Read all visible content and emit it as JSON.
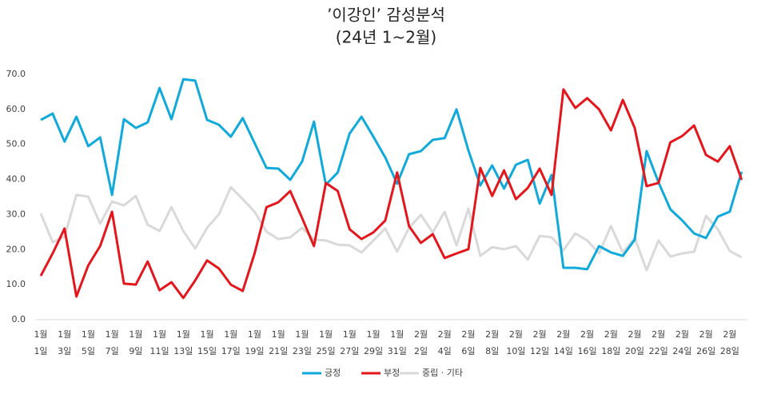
{
  "chart_data": {
    "type": "line",
    "title": "’이강인’ 감성분석",
    "subtitle": "(24년 1~2월)",
    "categories": [
      "1월\n1일",
      null,
      "1월\n3일",
      null,
      "1월\n5일",
      null,
      "1월\n7일",
      null,
      "1월\n9일",
      null,
      "1월\n11일",
      null,
      "1월\n13일",
      null,
      "1월\n15일",
      null,
      "1월\n17일",
      null,
      "1월\n19일",
      null,
      "1월\n21일",
      null,
      "1월\n23일",
      null,
      "1월\n25일",
      null,
      "1월\n27일",
      null,
      "1월\n29일",
      null,
      "1월\n31일",
      null,
      "2월\n2일",
      null,
      "2월\n4일",
      null,
      "2월\n6일",
      null,
      "2월\n8일",
      null,
      "2월\n10일",
      null,
      "2월\n12일",
      null,
      "2월\n14일",
      null,
      "2월\n16일",
      null,
      "2월\n18일",
      null,
      "2월\n20일",
      null,
      "2월\n22일",
      null,
      "2월\n24일",
      null,
      "2월\n26일",
      null,
      "2월\n28일",
      null
    ],
    "series": [
      {
        "name": "긍정",
        "color": "#10a9dc",
        "values": [
          57.0,
          58.8,
          50.8,
          57.9,
          49.5,
          52.0,
          35.6,
          57.2,
          54.7,
          56.3,
          66.1,
          57.2,
          68.6,
          68.2,
          57.0,
          55.6,
          52.2,
          57.5,
          50.4,
          43.3,
          43.1,
          39.9,
          45.1,
          56.5,
          38.5,
          42.0,
          53.1,
          57.9,
          52.2,
          46.3,
          38.8,
          47.2,
          48.1,
          51.3,
          51.8,
          60.0,
          48.3,
          38.3,
          44.0,
          37.4,
          44.2,
          45.6,
          33.1,
          41.3,
          14.8,
          14.8,
          14.4,
          21.0,
          19.2,
          18.2,
          22.8,
          48.1,
          39.2,
          31.5,
          28.3,
          24.6,
          23.3,
          29.4,
          30.8,
          42.2
        ]
      },
      {
        "name": "부정",
        "color": "#e5161b",
        "values": [
          12.5,
          18.9,
          26.0,
          6.6,
          15.5,
          21.0,
          30.8,
          10.3,
          10.0,
          16.6,
          8.4,
          10.7,
          6.2,
          11.2,
          16.9,
          14.6,
          10.0,
          8.2,
          18.9,
          32.1,
          33.5,
          36.7,
          29.0,
          21.0,
          39.0,
          36.7,
          25.8,
          23.0,
          24.9,
          28.3,
          42.0,
          26.7,
          21.9,
          24.4,
          17.6,
          18.9,
          20.1,
          43.3,
          35.3,
          42.6,
          34.4,
          37.6,
          43.1,
          35.6,
          65.7,
          60.4,
          63.2,
          60.0,
          54.0,
          62.7,
          54.7,
          38.1,
          39.0,
          50.6,
          52.4,
          55.4,
          47.0,
          45.1,
          49.5,
          39.9
        ]
      },
      {
        "name": "중립 · 기타",
        "color": "#d9d9d9",
        "values": [
          30.3,
          22.1,
          23.7,
          35.6,
          35.1,
          27.4,
          33.7,
          32.6,
          35.3,
          27.1,
          25.3,
          32.1,
          25.3,
          20.3,
          26.2,
          30.1,
          37.8,
          34.4,
          30.8,
          25.1,
          23.0,
          23.5,
          26.2,
          22.8,
          22.6,
          21.4,
          21.2,
          19.2,
          22.6,
          26.0,
          19.4,
          26.2,
          29.9,
          24.9,
          30.8,
          21.2,
          31.7,
          18.2,
          20.7,
          20.1,
          21.0,
          17.1,
          23.9,
          23.5,
          19.8,
          24.6,
          22.6,
          18.9,
          26.7,
          19.2,
          23.3,
          14.1,
          22.6,
          18.0,
          18.9,
          19.4,
          29.6,
          25.8,
          19.6,
          17.8
        ]
      }
    ],
    "ylim": [
      0,
      70
    ],
    "yticks": [
      {
        "value": 0,
        "label": "0.0"
      },
      {
        "value": 10,
        "label": "10.0"
      },
      {
        "value": 20,
        "label": "20.0"
      },
      {
        "value": 30,
        "label": "30.0"
      },
      {
        "value": 40,
        "label": "40.0"
      },
      {
        "value": 50,
        "label": "50.0"
      },
      {
        "value": 60,
        "label": "60.0"
      },
      {
        "value": 70,
        "label": "70.0"
      }
    ],
    "grid": false,
    "legend": "bottom"
  }
}
